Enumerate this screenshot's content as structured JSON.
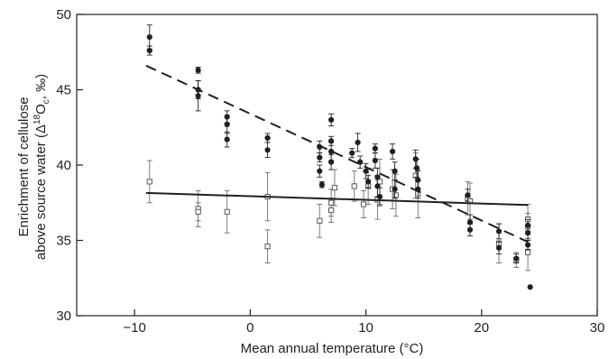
{
  "chart_data": {
    "type": "scatter",
    "xlabel": "Mean annual temperature (°C)",
    "ylabel_line1": "Enrichment of cellulose",
    "ylabel_line2_prefix": "above source water (Δ",
    "ylabel_sup": "18",
    "ylabel_mid": "O",
    "ylabel_sub": "c",
    "ylabel_suffix": ", ‰)",
    "xlim": [
      -15,
      30
    ],
    "ylim": [
      30,
      50
    ],
    "xticks": [
      -10,
      0,
      10,
      20,
      30
    ],
    "xtick_labels": [
      "−10",
      "0",
      "10",
      "20",
      "30"
    ],
    "yticks": [
      30,
      35,
      40,
      45,
      50
    ],
    "ytick_labels": [
      "30",
      "35",
      "40",
      "45",
      "50"
    ],
    "grid": false,
    "series": [
      {
        "marker": "filled-circle",
        "color": "#231f20",
        "points": [
          {
            "x": -8.7,
            "y": 48.5,
            "err": 0.8
          },
          {
            "x": -8.7,
            "y": 47.6,
            "err": 0.3
          },
          {
            "x": -4.5,
            "y": 46.3,
            "err": 0.2
          },
          {
            "x": -4.5,
            "y": 45.0,
            "err": 0.6
          },
          {
            "x": -4.5,
            "y": 44.6,
            "err": 1.0
          },
          {
            "x": -2.0,
            "y": 43.2,
            "err": 0.4
          },
          {
            "x": -2.0,
            "y": 42.7,
            "err": 0.6
          },
          {
            "x": -2.0,
            "y": 41.7,
            "err": 0.5
          },
          {
            "x": 1.5,
            "y": 41.8,
            "err": 0.3
          },
          {
            "x": 1.5,
            "y": 41.0,
            "err": 0.5
          },
          {
            "x": 6.0,
            "y": 41.2,
            "err": 0.4
          },
          {
            "x": 6.0,
            "y": 40.5,
            "err": 0.3
          },
          {
            "x": 6.0,
            "y": 39.6,
            "err": 0.4
          },
          {
            "x": 6.2,
            "y": 38.7,
            "err": 0.2
          },
          {
            "x": 7.0,
            "y": 43.0,
            "err": 0.4
          },
          {
            "x": 7.0,
            "y": 41.6,
            "err": 0.3
          },
          {
            "x": 7.0,
            "y": 40.9,
            "err": 0.6
          },
          {
            "x": 7.0,
            "y": 40.2,
            "err": 0.5
          },
          {
            "x": 8.8,
            "y": 40.8,
            "err": 0.3
          },
          {
            "x": 9.3,
            "y": 41.5,
            "err": 0.6
          },
          {
            "x": 9.5,
            "y": 40.2,
            "err": 0.4
          },
          {
            "x": 10.0,
            "y": 39.6,
            "err": 0.5
          },
          {
            "x": 10.2,
            "y": 38.9,
            "err": 0.4
          },
          {
            "x": 10.8,
            "y": 41.1,
            "err": 0.3
          },
          {
            "x": 10.8,
            "y": 40.3,
            "err": 0.5
          },
          {
            "x": 11.0,
            "y": 39.2,
            "err": 0.6
          },
          {
            "x": 11.0,
            "y": 38.6,
            "err": 0.7
          },
          {
            "x": 11.2,
            "y": 37.9,
            "err": 0.6
          },
          {
            "x": 12.3,
            "y": 40.9,
            "err": 0.5
          },
          {
            "x": 12.5,
            "y": 39.6,
            "err": 0.6
          },
          {
            "x": 12.5,
            "y": 38.4,
            "err": 0.6
          },
          {
            "x": 14.3,
            "y": 40.4,
            "err": 0.6
          },
          {
            "x": 14.4,
            "y": 39.8,
            "err": 0.6
          },
          {
            "x": 14.5,
            "y": 39.0,
            "err": 0.6
          },
          {
            "x": 14.5,
            "y": 38.4,
            "err": 0.6
          },
          {
            "x": 18.8,
            "y": 38.0,
            "err": 0.4
          },
          {
            "x": 19.0,
            "y": 36.2,
            "err": 0.5
          },
          {
            "x": 19.0,
            "y": 35.7,
            "err": 0.4
          },
          {
            "x": 21.5,
            "y": 35.6,
            "err": 0.5
          },
          {
            "x": 21.5,
            "y": 34.5,
            "err": 0.4
          },
          {
            "x": 23.0,
            "y": 33.8,
            "err": 0.3
          },
          {
            "x": 24.0,
            "y": 36.0,
            "err": 0.4
          },
          {
            "x": 24.0,
            "y": 35.5,
            "err": 0.4
          },
          {
            "x": 24.0,
            "y": 34.7,
            "err": 0.3
          },
          {
            "x": 24.2,
            "y": 31.9,
            "err": 0.0
          }
        ]
      },
      {
        "marker": "open-square",
        "color": "#231f20",
        "points": [
          {
            "x": -8.7,
            "y": 38.9,
            "err": 1.4
          },
          {
            "x": -4.5,
            "y": 37.1,
            "err": 1.2
          },
          {
            "x": -4.5,
            "y": 36.9,
            "err": 0.6
          },
          {
            "x": -2.0,
            "y": 36.9,
            "err": 1.4
          },
          {
            "x": 1.5,
            "y": 37.9,
            "err": 1.6
          },
          {
            "x": 1.5,
            "y": 34.6,
            "err": 1.1
          },
          {
            "x": 6.0,
            "y": 36.3,
            "err": 1.1
          },
          {
            "x": 7.0,
            "y": 37.5,
            "err": 0.9
          },
          {
            "x": 7.0,
            "y": 37.0,
            "err": 0.8
          },
          {
            "x": 7.3,
            "y": 38.5,
            "err": 1.2
          },
          {
            "x": 9.0,
            "y": 38.6,
            "err": 1.0
          },
          {
            "x": 9.8,
            "y": 37.4,
            "err": 0.9
          },
          {
            "x": 10.2,
            "y": 38.6,
            "err": 1.2
          },
          {
            "x": 11.0,
            "y": 37.7,
            "err": 1.3
          },
          {
            "x": 11.2,
            "y": 38.9,
            "err": 1.5
          },
          {
            "x": 12.3,
            "y": 38.4,
            "err": 1.3
          },
          {
            "x": 12.6,
            "y": 38.0,
            "err": 1.4
          },
          {
            "x": 14.3,
            "y": 39.3,
            "err": 1.5
          },
          {
            "x": 14.5,
            "y": 38.1,
            "err": 1.6
          },
          {
            "x": 18.8,
            "y": 37.8,
            "err": 1.1
          },
          {
            "x": 19.0,
            "y": 37.6,
            "err": 1.2
          },
          {
            "x": 21.5,
            "y": 34.8,
            "err": 1.3
          },
          {
            "x": 23.0,
            "y": 33.7,
            "err": 0.5
          },
          {
            "x": 24.0,
            "y": 36.4,
            "err": 1.0
          },
          {
            "x": 24.0,
            "y": 35.9,
            "err": 0.9
          },
          {
            "x": 24.0,
            "y": 34.2,
            "err": 1.2
          }
        ]
      }
    ],
    "fit_lines": [
      {
        "style": "dashed",
        "x": [
          -9,
          24
        ],
        "y": [
          46.6,
          34.9
        ]
      },
      {
        "style": "solid",
        "x": [
          -9,
          24
        ],
        "y": [
          38.15,
          37.35
        ]
      }
    ]
  }
}
